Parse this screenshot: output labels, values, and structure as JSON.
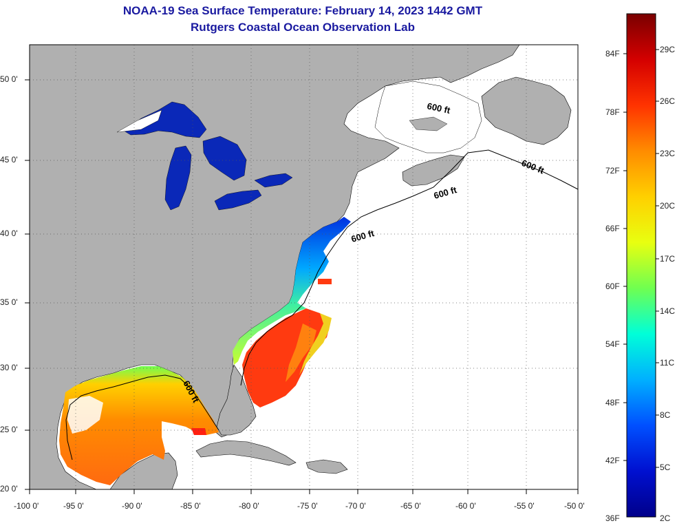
{
  "title": "NOAA-19 Sea Surface Temperature:  February 14, 2023 1442 GMT",
  "subtitle": "Rutgers Coastal Ocean Observation Lab",
  "lat_labels": [
    "50 0'",
    "45 0'",
    "40 0'",
    "35 0'",
    "30 0'",
    "25 0'",
    "20 0'"
  ],
  "lon_labels": [
    "-100 0'",
    "-95 0'",
    "-90 0'",
    "-85 0'",
    "-80 0'",
    "-75 0'",
    "-70 0'",
    "-65 0'",
    "-60 0'",
    "-55 0'",
    "-50 0'"
  ],
  "contour_label": "600 ft",
  "colorbar": {
    "fahrenheit": [
      "84F",
      "78F",
      "72F",
      "66F",
      "60F",
      "54F",
      "48F",
      "42F",
      "36F"
    ],
    "celsius": [
      "29C",
      "26C",
      "23C",
      "20C",
      "17C",
      "14C",
      "11C",
      "8C",
      "5C",
      "2C"
    ],
    "colors": [
      "#7a0000",
      "#d40000",
      "#ff3300",
      "#ff8c00",
      "#ffd000",
      "#e8ff10",
      "#70ff50",
      "#00ffd8",
      "#00b0ff",
      "#0050ff",
      "#0010d0",
      "#00008a"
    ]
  },
  "colors": {
    "land": "#b0b0b0",
    "ocean_no_data": "#ffffff",
    "title": "#1a1aa0",
    "lakes": "#0a28b8"
  }
}
